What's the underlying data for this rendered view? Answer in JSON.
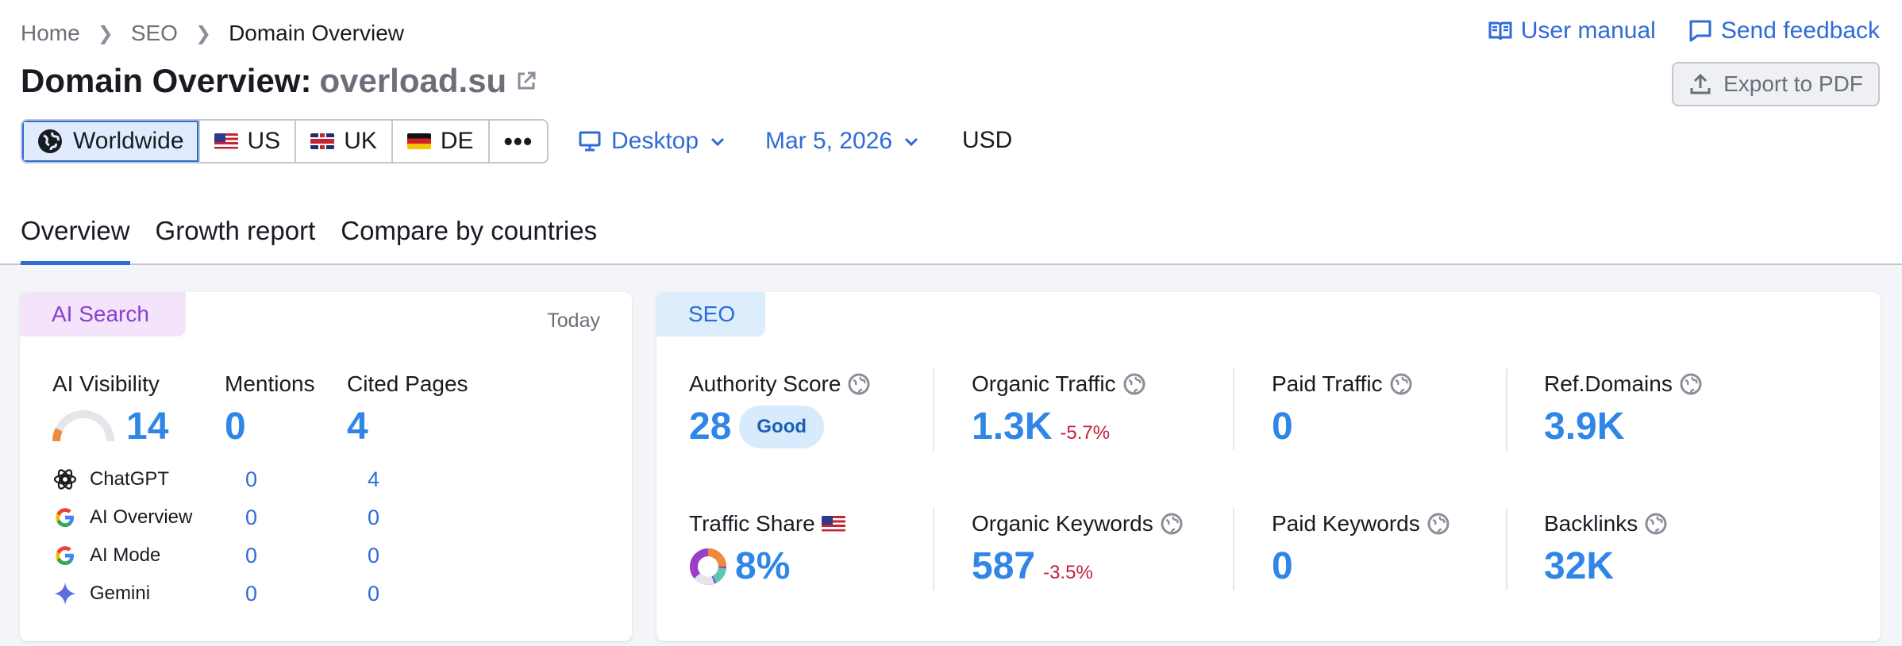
{
  "breadcrumb": {
    "home": "Home",
    "seo": "SEO",
    "current": "Domain Overview"
  },
  "top_links": {
    "manual": "User manual",
    "feedback": "Send feedback"
  },
  "title": {
    "prefix": "Domain Overview:",
    "domain": "overload.su"
  },
  "export_label": "Export to PDF",
  "databases": {
    "worldwide": "Worldwide",
    "us": "US",
    "uk": "UK",
    "de": "DE",
    "more": "•••"
  },
  "device": "Desktop",
  "date": "Mar 5, 2026",
  "currency": "USD",
  "tabs": [
    "Overview",
    "Growth report",
    "Compare by countries"
  ],
  "ai_search": {
    "label": "AI Search",
    "period": "Today",
    "headers": {
      "visibility": "AI Visibility",
      "mentions": "Mentions",
      "cited": "Cited Pages"
    },
    "visibility": "14",
    "visibility_fraction": 0.14,
    "mentions": "0",
    "cited": "4",
    "rows": [
      {
        "name": "ChatGPT",
        "mentions": "0",
        "cited": "4"
      },
      {
        "name": "AI Overview",
        "mentions": "0",
        "cited": "0"
      },
      {
        "name": "AI Mode",
        "mentions": "0",
        "cited": "0"
      },
      {
        "name": "Gemini",
        "mentions": "0",
        "cited": "0"
      }
    ]
  },
  "seo": {
    "label": "SEO",
    "authority": {
      "label": "Authority Score",
      "value": "28",
      "badge": "Good"
    },
    "organic_traffic": {
      "label": "Organic Traffic",
      "value": "1.3K",
      "delta": "-5.7%"
    },
    "paid_traffic": {
      "label": "Paid Traffic",
      "value": "0"
    },
    "ref_domains": {
      "label": "Ref.Domains",
      "value": "3.9K"
    },
    "traffic_share": {
      "label": "Traffic Share",
      "value": "8%"
    },
    "organic_keywords": {
      "label": "Organic Keywords",
      "value": "587",
      "delta": "-3.5%"
    },
    "paid_keywords": {
      "label": "Paid Keywords",
      "value": "0"
    },
    "backlinks": {
      "label": "Backlinks",
      "value": "32K"
    }
  },
  "colors": {
    "accent": "#2f6bd6",
    "value_blue": "#2f86e6",
    "negative": "#c2203a",
    "ai_purple": "#8a3fd1"
  }
}
